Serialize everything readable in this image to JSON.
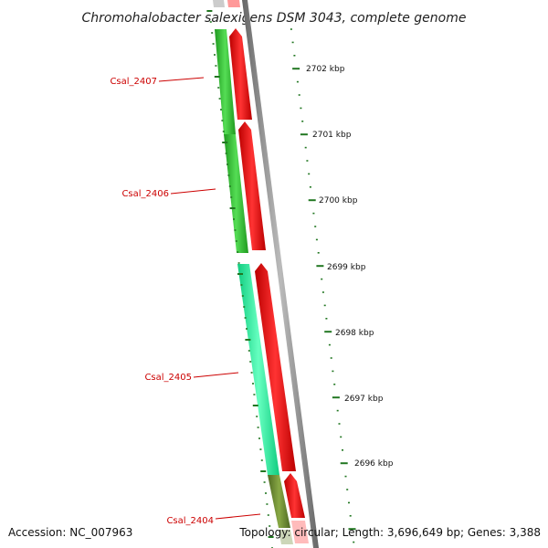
{
  "title": "Chromohalobacter salexigens DSM 3043, complete genome",
  "footer": {
    "accession": "Accession: NC_007963",
    "summary": "Topology: circular; Length: 3,696,649 bp; Genes: 3,388"
  },
  "scale_labels": [
    "2702 kbp",
    "2701 kbp",
    "2700 kbp",
    "2699 kbp",
    "2698 kbp",
    "2697 kbp",
    "2696 kbp"
  ],
  "genes": [
    {
      "label": "Csal_2407",
      "color": "#33bb33"
    },
    {
      "label": "Csal_2406",
      "color": "#33bb33"
    },
    {
      "label": "Csal_2405",
      "color": "#22ee99"
    },
    {
      "label": "Csal_2404",
      "color": "#668833"
    }
  ],
  "colors": {
    "forward_feature": "#ee0000",
    "label_line": "#cc0000",
    "backbone": "#888888",
    "tick": "#227722"
  }
}
